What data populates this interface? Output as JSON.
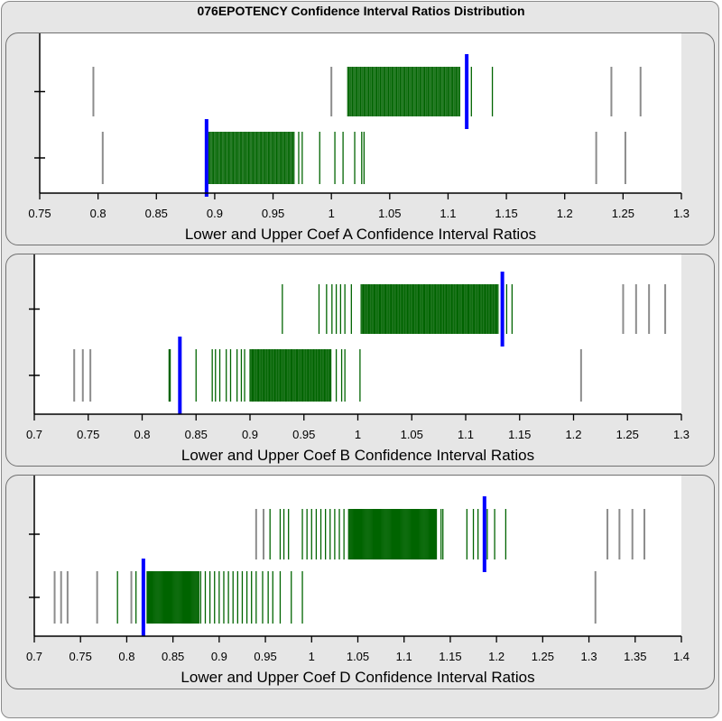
{
  "title": "076EPOTENCY Confidence Interval Ratios Distribution",
  "colors": {
    "background": "#e6e6e6",
    "plot": "#ffffff",
    "inside": "#006400",
    "outside": "#8c8c8c",
    "marker": "#0000ff"
  },
  "chart_data": [
    {
      "type": "strip",
      "xlabel": "Lower and Upper Coef A Confidence Interval Ratios",
      "xlim": [
        0.75,
        1.3
      ],
      "xticks": [
        0.75,
        0.8,
        0.85,
        0.9,
        0.95,
        1,
        1.05,
        1.1,
        1.15,
        1.2,
        1.25,
        1.3
      ],
      "grid": false,
      "rows": [
        {
          "marker": 1.116,
          "inside_range": [
            1.014,
            1.11
          ],
          "inside_extra": [
            1.12,
            1.138
          ],
          "outside": [
            0.796,
            1.0,
            1.24,
            1.265
          ]
        },
        {
          "marker": 0.893,
          "inside_range": [
            0.895,
            0.968
          ],
          "inside_extra": [
            0.972,
            0.975,
            0.99,
            1.003,
            1.01,
            1.02,
            1.026,
            1.028
          ],
          "outside": [
            0.804,
            1.227,
            1.252
          ]
        }
      ]
    },
    {
      "type": "strip",
      "xlabel": "Lower and Upper Coef B Confidence Interval Ratios",
      "xlim": [
        0.7,
        1.3
      ],
      "xticks": [
        0.7,
        0.75,
        0.8,
        0.85,
        0.9,
        0.95,
        1,
        1.05,
        1.1,
        1.15,
        1.2,
        1.25,
        1.3
      ],
      "grid": false,
      "rows": [
        {
          "marker": 1.134,
          "inside_range": [
            1.003,
            1.13
          ],
          "inside_extra": [
            0.93,
            0.964,
            0.971,
            0.976,
            0.98,
            0.984,
            0.988,
            0.994,
            1.138,
            1.143
          ],
          "outside": [
            1.246,
            1.258,
            1.27,
            1.285
          ]
        },
        {
          "marker": 0.835,
          "inside_range": [
            0.9,
            0.975
          ],
          "inside_extra": [
            0.825,
            0.826,
            0.85,
            0.865,
            0.868,
            0.872,
            0.878,
            0.882,
            0.888,
            0.892,
            0.895,
            0.98,
            0.985,
            0.988,
            1.002
          ],
          "outside": [
            0.737,
            0.745,
            0.752,
            1.207
          ]
        }
      ]
    },
    {
      "type": "strip",
      "xlabel": "Lower and Upper Coef D Confidence Interval Ratios",
      "xlim": [
        0.7,
        1.4
      ],
      "xticks": [
        0.7,
        0.75,
        0.8,
        0.85,
        0.9,
        0.95,
        1,
        1.05,
        1.1,
        1.15,
        1.2,
        1.25,
        1.3,
        1.35,
        1.4
      ],
      "grid": false,
      "rows": [
        {
          "marker": 1.187,
          "inside_range": [
            1.04,
            1.135
          ],
          "inside_extra": [
            0.955,
            0.966,
            0.97,
            0.975,
            0.99,
            0.995,
            1.0,
            1.005,
            1.01,
            1.015,
            1.02,
            1.025,
            1.03,
            1.035,
            1.14,
            1.142,
            1.168,
            1.175,
            1.18,
            1.19,
            1.198,
            1.21
          ],
          "outside": [
            0.94,
            0.948,
            1.32,
            1.333,
            1.347,
            1.36
          ]
        },
        {
          "marker": 0.818,
          "inside_range": [
            0.822,
            0.878
          ],
          "inside_extra": [
            0.79,
            0.81,
            0.88,
            0.885,
            0.89,
            0.895,
            0.9,
            0.905,
            0.91,
            0.915,
            0.92,
            0.925,
            0.93,
            0.935,
            0.94,
            0.947,
            0.953,
            0.958,
            0.966,
            0.978,
            0.99
          ],
          "outside": [
            0.722,
            0.729,
            0.736,
            0.768,
            0.805,
            1.307
          ]
        }
      ]
    }
  ]
}
